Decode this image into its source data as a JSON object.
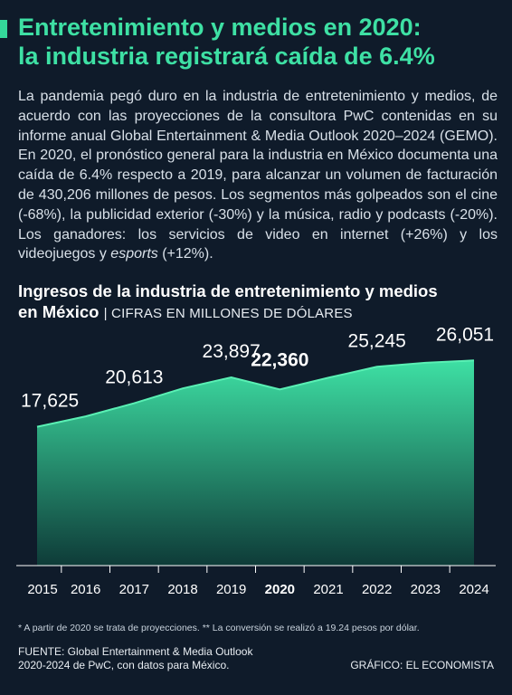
{
  "header": {
    "title_line1": "Entretenimiento y medios en 2020:",
    "title_line2": "la industria registrará caída de 6.4%"
  },
  "intro": {
    "text_before_italic": "La pandemia pegó duro en la industria de entretenimiento y medios, de acuerdo con las proyecciones de la consultora PwC contenidas en su informe anual Global Entertainment & Media Outlook 2020–2024 (GEMO). En 2020, el pronóstico general para la industria en México documenta una caída de 6.4% respecto a 2019, para alcanzar un volumen de facturación de 430,206 millones de pesos. Los segmentos más golpeados son el cine (-68%), la publicidad exterior (-30%) y la música, radio y podcasts (-20%). Los ganadores: los servicios de video en internet (+26%) y los videojuegos y ",
    "italic_word": "esports",
    "text_after_italic": " (+12%)."
  },
  "chart_heading": {
    "title_line1": "Ingresos de la industria de entretenimiento y medios",
    "title_line2": "en México",
    "subtitle": "| CIFRAS EN MILLONES DE DÓLARES"
  },
  "chart_data": {
    "type": "area",
    "x": [
      "2015",
      "2016",
      "2017",
      "2018",
      "2019",
      "2020",
      "2021",
      "2022",
      "2023",
      "2024"
    ],
    "values": [
      17625,
      18950,
      20613,
      22500,
      23897,
      22360,
      23850,
      25245,
      25750,
      26051
    ],
    "labels": [
      {
        "index": 0,
        "text": "17,625",
        "bold": false
      },
      {
        "index": 2,
        "text": "20,613",
        "bold": false
      },
      {
        "index": 4,
        "text": "23,897",
        "bold": false
      },
      {
        "index": 5,
        "text": "22,360",
        "bold": true
      },
      {
        "index": 7,
        "text": "25,245",
        "bold": false
      },
      {
        "index": 9,
        "text": "26,051",
        "bold": false
      }
    ],
    "highlight_category": "2020",
    "ylim": [
      0,
      27000
    ],
    "grid": false,
    "colors": {
      "fill_top": "#3ee0a4",
      "fill_bottom": "#0e3b38",
      "line": "#5af0b4"
    }
  },
  "footer": {
    "footnote": "* A partir de 2020 se trata de proyecciones. ** La conversión se realizó a 19.24 pesos por dólar.",
    "source_line1": "FUENTE: Global Entertainment & Media Outlook",
    "source_line2": "2020-2024 de PwC, con datos para México.",
    "credit": "GRÁFICO: EL ECONOMISTA"
  }
}
